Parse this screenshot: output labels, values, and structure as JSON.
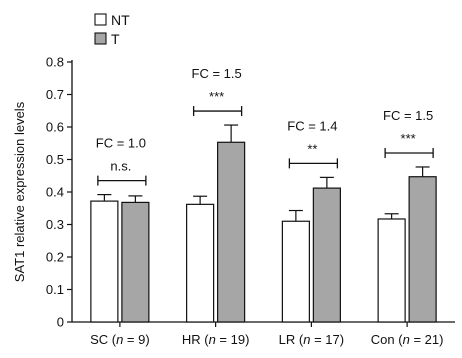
{
  "chart_data": {
    "type": "bar",
    "ylabel": "SAT1 relative expression levels",
    "ylim": [
      0,
      0.8
    ],
    "yticks": [
      "0",
      "0.1",
      "0.2",
      "0.3",
      "0.4",
      "0.5",
      "0.6",
      "0.7",
      "0.8"
    ],
    "categories": [
      {
        "prefix": "SC (",
        "n": "n",
        "suffix": " = 9)"
      },
      {
        "prefix": "HR (",
        "n": "n",
        "suffix": " = 19)"
      },
      {
        "prefix": "LR (",
        "n": "n",
        "suffix": " = 17)"
      },
      {
        "prefix": "Con (",
        "n": "n",
        "suffix": " = 21)"
      }
    ],
    "series": [
      {
        "name": "NT",
        "color": "#ffffff",
        "values": [
          0.372,
          0.362,
          0.31,
          0.317
        ],
        "errors": [
          0.02,
          0.025,
          0.033,
          0.016
        ]
      },
      {
        "name": "T",
        "color": "#a6a6a6",
        "values": [
          0.368,
          0.553,
          0.412,
          0.447
        ],
        "errors": [
          0.02,
          0.053,
          0.033,
          0.03
        ]
      }
    ],
    "annotations": [
      {
        "fc": "FC = 1.0",
        "sig": "n.s."
      },
      {
        "fc": "FC = 1.5",
        "sig": "***"
      },
      {
        "fc": "FC = 1.4",
        "sig": "**"
      },
      {
        "fc": "FC = 1.5",
        "sig": "***"
      }
    ],
    "legend_position": "top-left",
    "grid": false
  }
}
